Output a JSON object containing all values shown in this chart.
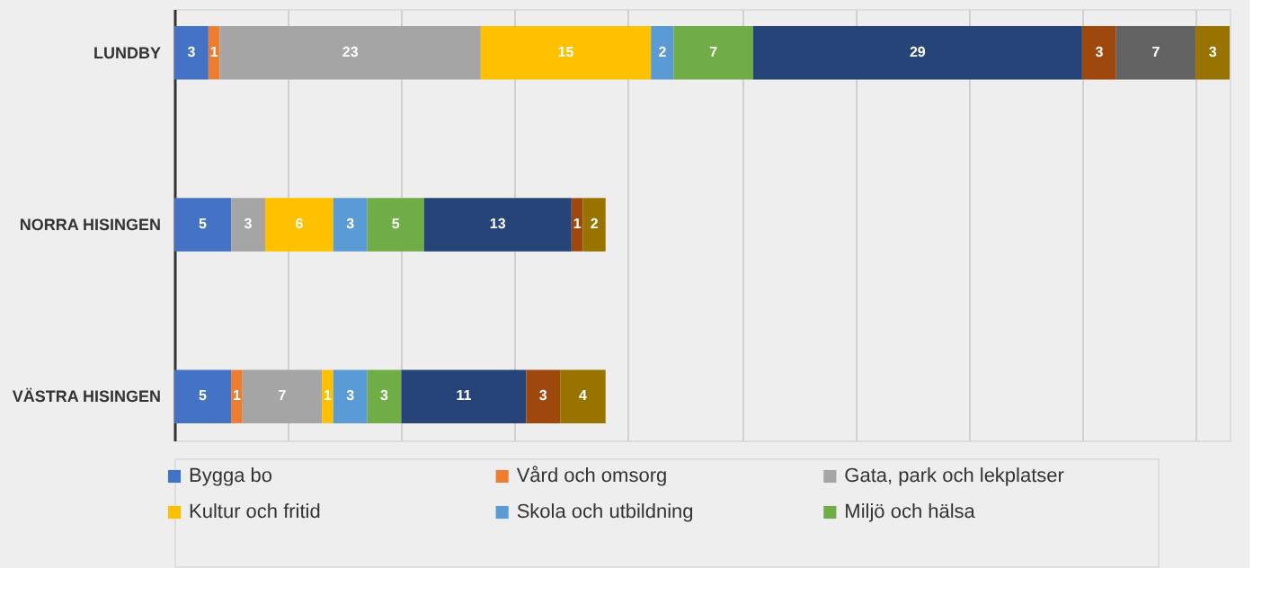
{
  "chart_data": {
    "type": "bar",
    "orientation": "horizontal",
    "stacked": true,
    "grid": "x",
    "legend": "bottom",
    "data_labels": true,
    "categories": [
      "LUNDBY",
      "NORRA HISINGEN",
      "VÄSTRA HISINGEN"
    ],
    "series": [
      {
        "name": "Bygga bo",
        "color": "#4472c4",
        "values": [
          3,
          5,
          5
        ]
      },
      {
        "name": "Vård och omsorg",
        "color": "#ed7d31",
        "values": [
          1,
          null,
          1
        ]
      },
      {
        "name": "Gata, park och lekplatser",
        "color": "#a5a5a5",
        "values": [
          23,
          3,
          7
        ]
      },
      {
        "name": "Kultur och fritid",
        "color": "#ffc000",
        "values": [
          15,
          6,
          1
        ]
      },
      {
        "name": "Skola och utbildning",
        "color": "#5b9bd5",
        "values": [
          2,
          3,
          3
        ]
      },
      {
        "name": "Miljö och hälsa",
        "color": "#70ad47",
        "values": [
          7,
          5,
          3
        ]
      },
      {
        "color": "#264478",
        "values": [
          29,
          13,
          11
        ]
      },
      {
        "color": "#9e480e",
        "values": [
          3,
          1,
          3
        ]
      },
      {
        "color": "#636363",
        "values": [
          7,
          null,
          null
        ]
      },
      {
        "color": "#997300",
        "values": [
          3,
          2,
          4
        ]
      }
    ]
  }
}
